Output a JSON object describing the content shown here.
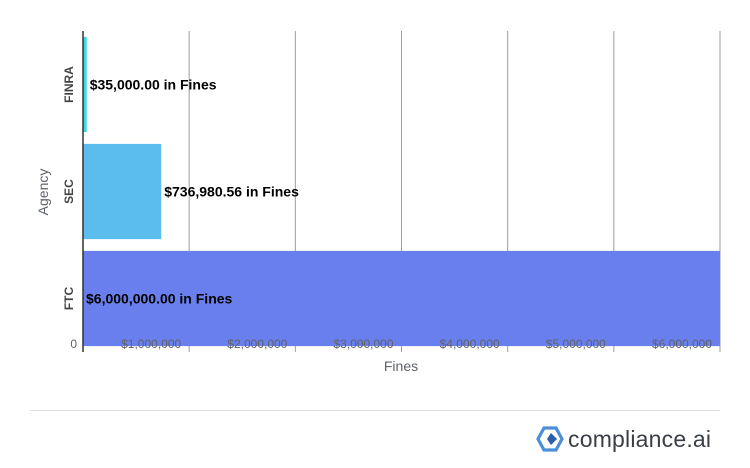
{
  "chart_data": {
    "type": "bar",
    "orientation": "horizontal",
    "categories": [
      "FINRA",
      "SEC",
      "FTC"
    ],
    "values": [
      35000.0,
      736980.56,
      6000000.0
    ],
    "data_labels": [
      "$35,000.00 in Fines",
      "$736,980.56 in Fines",
      "$6,000,000.00 in Fines"
    ],
    "colors": [
      "#3ed9e6",
      "#5bbdee",
      "#6a7fee"
    ],
    "xlabel": "Fines",
    "ylabel": "Agency",
    "xlim": [
      0,
      6000000
    ],
    "x_ticks": [
      0,
      1000000,
      2000000,
      3000000,
      4000000,
      5000000,
      6000000
    ],
    "x_tick_labels": [
      "0",
      "$1,000,000",
      "$2,000,000",
      "$3,000,000",
      "$4,000,000",
      "$5,000,000",
      "$6,000,000"
    ],
    "grid": true,
    "legend": "none"
  },
  "branding": {
    "logo_text": "compliance.ai",
    "logo_icon": "hexagon-logo-icon",
    "logo_colors": [
      "#4a90d9",
      "#2b5fa8"
    ]
  }
}
